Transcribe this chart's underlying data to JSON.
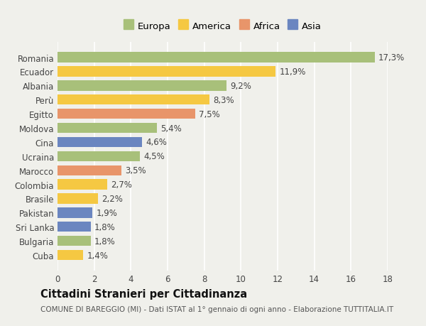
{
  "categories": [
    "Romania",
    "Ecuador",
    "Albania",
    "Perù",
    "Egitto",
    "Moldova",
    "Cina",
    "Ucraina",
    "Marocco",
    "Colombia",
    "Brasile",
    "Pakistan",
    "Sri Lanka",
    "Bulgaria",
    "Cuba"
  ],
  "values": [
    17.3,
    11.9,
    9.2,
    8.3,
    7.5,
    5.4,
    4.6,
    4.5,
    3.5,
    2.7,
    2.2,
    1.9,
    1.8,
    1.8,
    1.4
  ],
  "labels": [
    "17,3%",
    "11,9%",
    "9,2%",
    "8,3%",
    "7,5%",
    "5,4%",
    "4,6%",
    "4,5%",
    "3,5%",
    "2,7%",
    "2,2%",
    "1,9%",
    "1,8%",
    "1,8%",
    "1,4%"
  ],
  "continents": [
    "Europa",
    "America",
    "Europa",
    "America",
    "Africa",
    "Europa",
    "Asia",
    "Europa",
    "Africa",
    "America",
    "America",
    "Asia",
    "Asia",
    "Europa",
    "America"
  ],
  "colors": {
    "Europa": "#a8c07a",
    "America": "#f5c842",
    "Africa": "#e8956a",
    "Asia": "#6b86c0"
  },
  "legend_order": [
    "Europa",
    "America",
    "Africa",
    "Asia"
  ],
  "xlim": [
    0,
    18
  ],
  "xticks": [
    0,
    2,
    4,
    6,
    8,
    10,
    12,
    14,
    16,
    18
  ],
  "title": "Cittadini Stranieri per Cittadinanza",
  "subtitle": "COMUNE DI BAREGGIO (MI) - Dati ISTAT al 1° gennaio di ogni anno - Elaborazione TUTTITALIA.IT",
  "bg_color": "#f0f0eb",
  "grid_color": "#ffffff",
  "bar_height": 0.72,
  "label_fontsize": 8.5,
  "tick_fontsize": 8.5,
  "title_fontsize": 10.5,
  "subtitle_fontsize": 7.5
}
